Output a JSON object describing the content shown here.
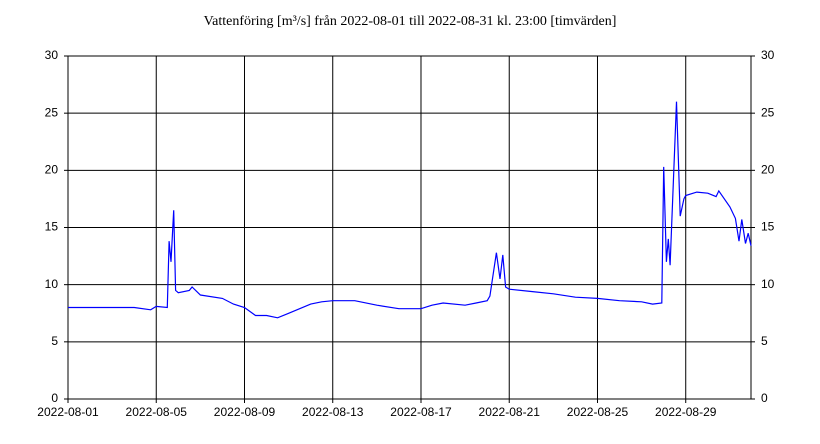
{
  "chart_data": {
    "type": "line",
    "title": "Vattenföring [m³/s] från 2022-08-01 till 2022-08-31 kl. 23:00 [timvärden]",
    "x": [
      "2022-08-01 00:00",
      "2022-08-02 00:00",
      "2022-08-03 00:00",
      "2022-08-04 00:00",
      "2022-08-04 18:00",
      "2022-08-05 00:00",
      "2022-08-05 12:00",
      "2022-08-05 14:00",
      "2022-08-05 16:00",
      "2022-08-05 19:00",
      "2022-08-05 21:00",
      "2022-08-06 00:00",
      "2022-08-06 12:00",
      "2022-08-06 15:00",
      "2022-08-07 00:00",
      "2022-08-08 00:00",
      "2022-08-08 12:00",
      "2022-08-09 00:00",
      "2022-08-09 12:00",
      "2022-08-10 00:00",
      "2022-08-10 12:00",
      "2022-08-11 00:00",
      "2022-08-12 00:00",
      "2022-08-12 12:00",
      "2022-08-13 00:00",
      "2022-08-14 00:00",
      "2022-08-15 00:00",
      "2022-08-16 00:00",
      "2022-08-17 00:00",
      "2022-08-17 12:00",
      "2022-08-18 00:00",
      "2022-08-19 00:00",
      "2022-08-19 12:00",
      "2022-08-20 00:00",
      "2022-08-20 03:00",
      "2022-08-20 10:00",
      "2022-08-20 14:00",
      "2022-08-20 17:00",
      "2022-08-20 20:00",
      "2022-08-21 00:00",
      "2022-08-22 00:00",
      "2022-08-23 00:00",
      "2022-08-24 00:00",
      "2022-08-25 00:00",
      "2022-08-26 00:00",
      "2022-08-27 00:00",
      "2022-08-27 12:00",
      "2022-08-27 22:00",
      "2022-08-28 00:00",
      "2022-08-28 03:00",
      "2022-08-28 05:00",
      "2022-08-28 07:00",
      "2022-08-28 14:00",
      "2022-08-28 18:00",
      "2022-08-28 22:00",
      "2022-08-29 00:00",
      "2022-08-29 12:00",
      "2022-08-30 00:00",
      "2022-08-30 09:00",
      "2022-08-30 12:00",
      "2022-08-31 00:00",
      "2022-08-31 06:00",
      "2022-08-31 10:00",
      "2022-08-31 13:00",
      "2022-08-31 17:00",
      "2022-08-31 20:00",
      "2022-08-31 23:00"
    ],
    "series": [
      {
        "color": "#0000ff",
        "values": [
          8.0,
          8.0,
          8.0,
          8.0,
          7.8,
          8.1,
          8.0,
          13.8,
          12.0,
          16.5,
          9.5,
          9.3,
          9.5,
          9.8,
          9.1,
          8.8,
          8.3,
          8.0,
          7.3,
          7.3,
          7.1,
          7.5,
          8.3,
          8.5,
          8.6,
          8.6,
          8.2,
          7.9,
          7.9,
          8.2,
          8.4,
          8.2,
          8.4,
          8.6,
          9.0,
          12.8,
          10.5,
          12.6,
          9.8,
          9.6,
          9.4,
          9.2,
          8.9,
          8.8,
          8.6,
          8.5,
          8.3,
          8.4,
          20.3,
          12.0,
          14.0,
          11.7,
          26.0,
          16.0,
          17.5,
          17.8,
          18.1,
          18.0,
          17.7,
          18.2,
          16.8,
          15.8,
          13.8,
          15.7,
          13.6,
          14.5,
          13.4
        ]
      }
    ],
    "xlim": [
      "2022-08-01 00:00",
      "2022-08-31 23:00"
    ],
    "xticks": [
      "2022-08-01",
      "2022-08-05",
      "2022-08-09",
      "2022-08-13",
      "2022-08-17",
      "2022-08-21",
      "2022-08-25",
      "2022-08-29"
    ],
    "ylim": [
      0,
      30
    ],
    "yticks": [
      0,
      5,
      10,
      15,
      20,
      25,
      30
    ],
    "grid": true,
    "right_axis": true
  }
}
